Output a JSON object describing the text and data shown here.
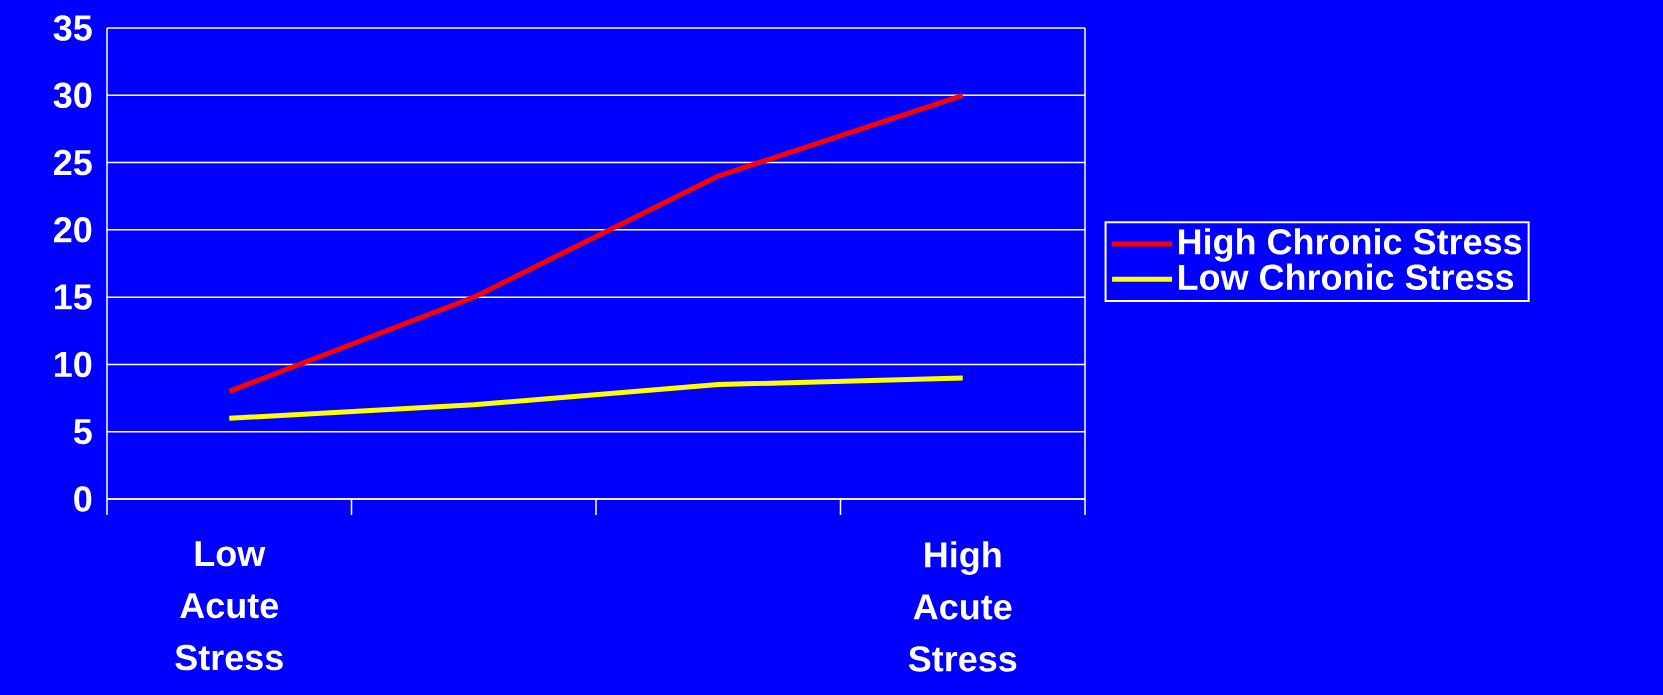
{
  "chart_data": {
    "type": "line",
    "categories": [
      "Low Acute Stress",
      null,
      null,
      "High Acute Stress"
    ],
    "series": [
      {
        "name": "High Chronic Stress",
        "color": "#ff0000",
        "values": [
          8,
          15,
          24,
          30
        ]
      },
      {
        "name": "Low Chronic Stress",
        "color": "#ffff00",
        "values": [
          6,
          7,
          8.5,
          9
        ]
      }
    ],
    "ylim": [
      0,
      35
    ],
    "yticks": [
      0,
      5,
      10,
      15,
      20,
      25,
      30,
      35
    ],
    "grid": "y",
    "legend": "right",
    "marker": "none",
    "line_style": "solid"
  }
}
